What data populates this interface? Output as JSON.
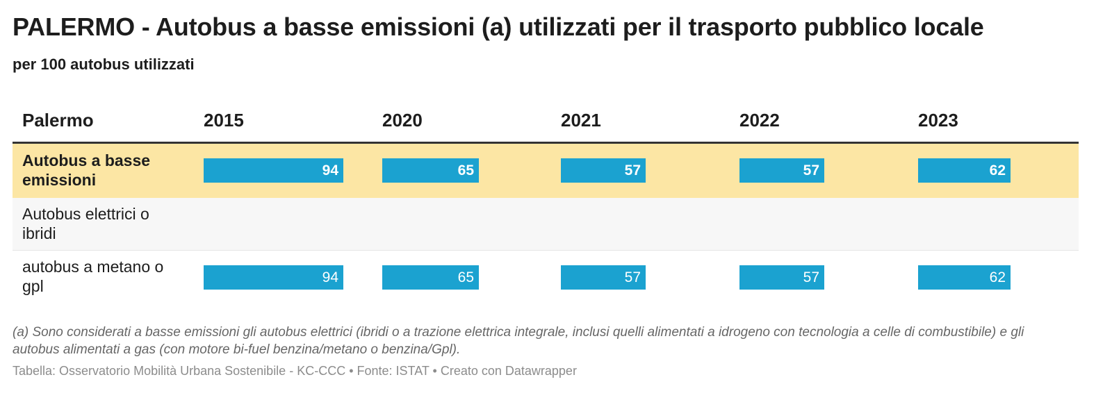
{
  "title": "PALERMO - Autobus a basse emissioni (a) utilizzati per il trasporto pubblico locale",
  "subtitle": "per 100 autobus utilizzati",
  "colors": {
    "bar": "#1ba2d0",
    "highlight_row": "#fce6a4"
  },
  "chart_data": {
    "type": "table",
    "header": {
      "label": "Palermo",
      "years": [
        "2015",
        "2020",
        "2021",
        "2022",
        "2023"
      ]
    },
    "max_value": 100,
    "rows": [
      {
        "label": "Autobus a basse emissioni",
        "highlighted": true,
        "values": [
          94,
          65,
          57,
          57,
          62
        ]
      },
      {
        "label": "Autobus elettrici o ibridi",
        "highlighted": false,
        "values": [
          null,
          null,
          null,
          null,
          null
        ]
      },
      {
        "label": "autobus a metano o gpl",
        "highlighted": false,
        "values": [
          94,
          65,
          57,
          57,
          62
        ]
      }
    ]
  },
  "note": "(a) Sono considerati a basse emissioni gli autobus elettrici (ibridi o a trazione elettrica integrale, inclusi quelli alimentati a idrogeno con tecnologia a celle di combustibile) e gli autobus alimentati a gas (con motore bi-fuel benzina/metano o benzina/Gpl).",
  "credit": "Tabella: Osservatorio Mobilità Urbana Sostenibile - KC-CCC • Fonte: ISTAT • Creato con Datawrapper"
}
